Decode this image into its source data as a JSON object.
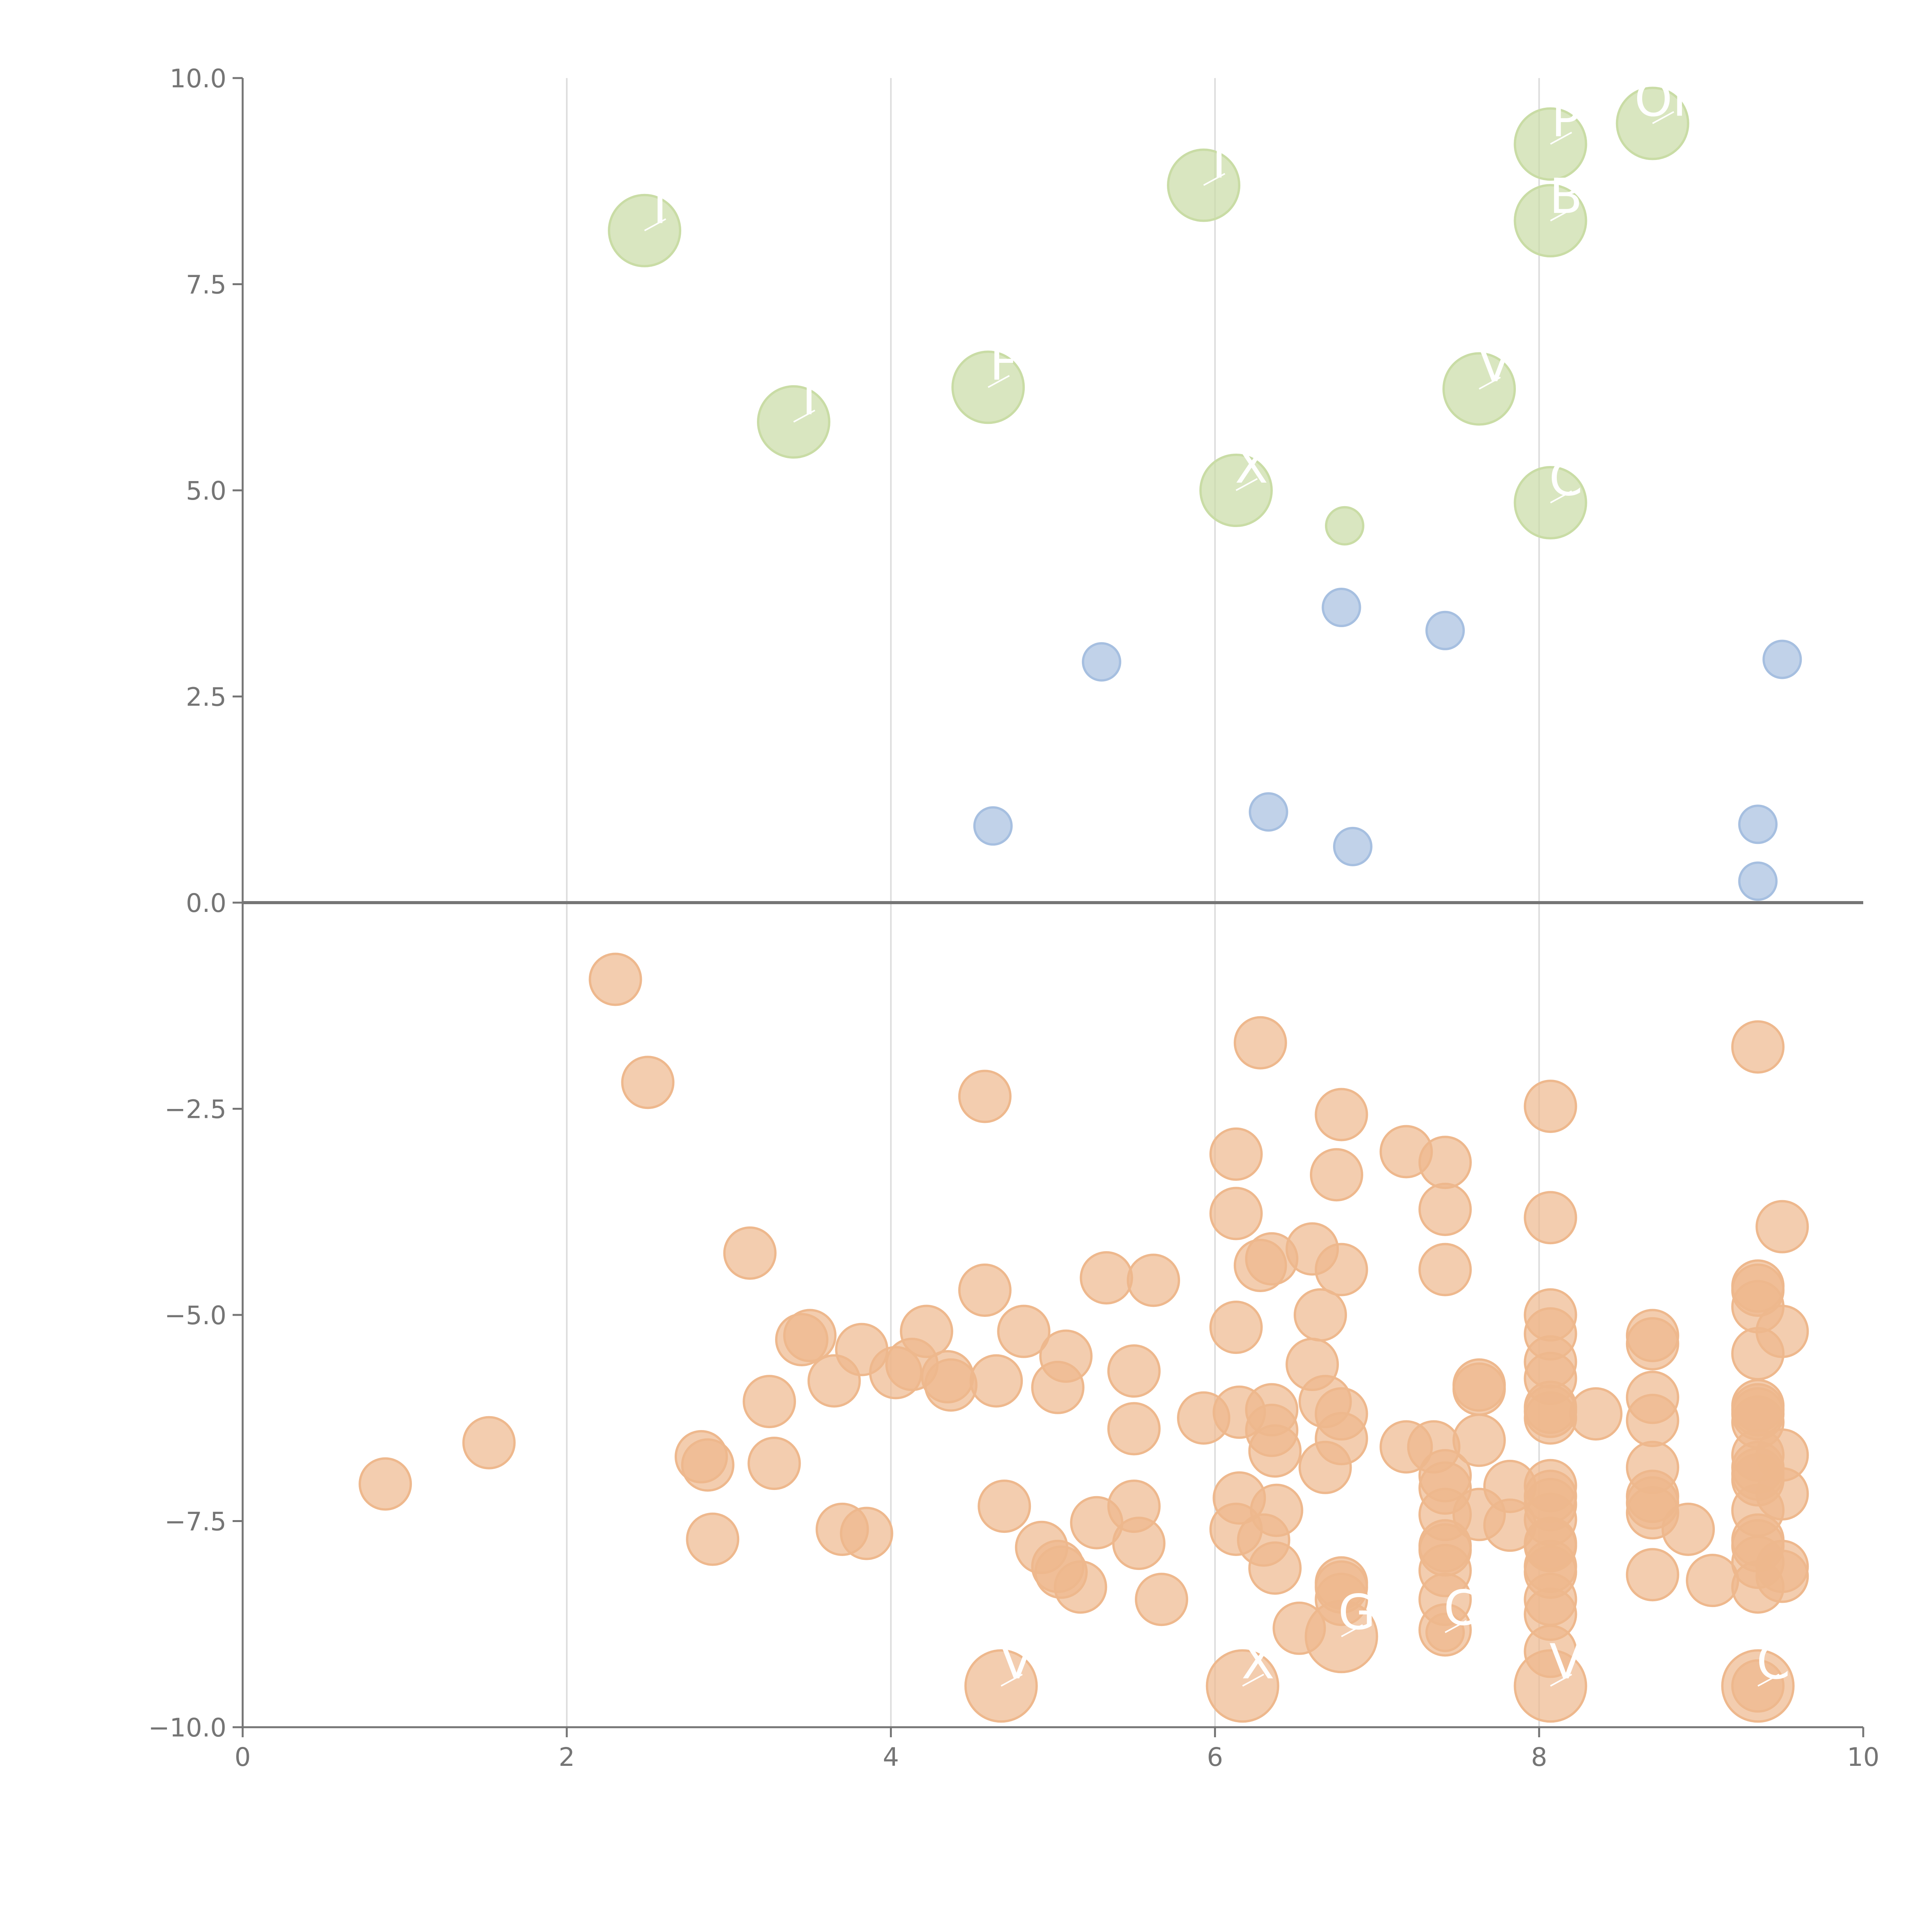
{
  "chart_data": {
    "type": "scatter",
    "title": "",
    "xlabel": "",
    "ylabel": "",
    "xlim": [
      0,
      10
    ],
    "ylim": [
      -10,
      10
    ],
    "grid": "vertical",
    "x_ticks": [
      0,
      2,
      4,
      6,
      8,
      10
    ],
    "y_ticks": [
      -10,
      -7.5,
      -5,
      -2.5,
      0,
      2.5,
      5,
      7.5,
      10
    ],
    "x_tick_labels": [
      "0",
      "2",
      "4",
      "6",
      "8",
      "10"
    ],
    "y_tick_labels": [
      "−10.0",
      "−7.5",
      "−5.0",
      "−2.5",
      "0.0",
      "2.5",
      "5.0",
      "7.5",
      "10.0"
    ],
    "zero_line": 0,
    "series": [
      {
        "name": "green",
        "color": "#c9dca5",
        "points": [
          {
            "x": 2.48,
            "y": 8.15,
            "size": "large",
            "label": "T"
          },
          {
            "x": 3.4,
            "y": 5.83,
            "size": "large",
            "label": "I"
          },
          {
            "x": 4.6,
            "y": 6.25,
            "size": "large",
            "label": "F"
          },
          {
            "x": 5.93,
            "y": 8.7,
            "size": "large",
            "label": "I"
          },
          {
            "x": 6.13,
            "y": 5.0,
            "size": "large",
            "label": "X"
          },
          {
            "x": 6.8,
            "y": 4.57,
            "size": "small"
          },
          {
            "x": 7.63,
            "y": 6.23,
            "size": "large",
            "label": "V"
          },
          {
            "x": 8.07,
            "y": 9.2,
            "size": "large",
            "label": "P"
          },
          {
            "x": 8.07,
            "y": 8.27,
            "size": "large",
            "label": "B"
          },
          {
            "x": 8.07,
            "y": 4.85,
            "size": "large",
            "label": "C"
          },
          {
            "x": 8.7,
            "y": 9.45,
            "size": "large",
            "label": "OP"
          }
        ]
      },
      {
        "name": "blue",
        "color": "#a6bfe0",
        "points": [
          {
            "x": 4.63,
            "y": 0.93,
            "size": "small"
          },
          {
            "x": 5.3,
            "y": 2.92,
            "size": "small"
          },
          {
            "x": 6.33,
            "y": 1.1,
            "size": "small"
          },
          {
            "x": 6.78,
            "y": 3.58,
            "size": "small"
          },
          {
            "x": 6.85,
            "y": 0.68,
            "size": "small"
          },
          {
            "x": 7.42,
            "y": 3.3,
            "size": "small"
          },
          {
            "x": 9.35,
            "y": 0.95,
            "size": "small"
          },
          {
            "x": 9.35,
            "y": 0.26,
            "size": "small"
          },
          {
            "x": 9.5,
            "y": 2.95,
            "size": "small"
          }
        ]
      },
      {
        "name": "orange",
        "color": "#eeb88d",
        "points": [
          {
            "x": 0.88,
            "y": -7.05
          },
          {
            "x": 1.52,
            "y": -6.55
          },
          {
            "x": 2.3,
            "y": -0.93
          },
          {
            "x": 2.5,
            "y": -2.18
          },
          {
            "x": 2.83,
            "y": -6.72
          },
          {
            "x": 2.87,
            "y": -6.82
          },
          {
            "x": 2.9,
            "y": -7.72
          },
          {
            "x": 3.13,
            "y": -4.25
          },
          {
            "x": 3.25,
            "y": -6.05
          },
          {
            "x": 3.28,
            "y": -6.8
          },
          {
            "x": 3.45,
            "y": -5.3
          },
          {
            "x": 3.5,
            "y": -5.25
          },
          {
            "x": 3.65,
            "y": -5.8
          },
          {
            "x": 3.7,
            "y": -7.6
          },
          {
            "x": 3.82,
            "y": -5.42
          },
          {
            "x": 3.85,
            "y": -7.65
          },
          {
            "x": 4.03,
            "y": -5.7
          },
          {
            "x": 4.13,
            "y": -5.6
          },
          {
            "x": 4.22,
            "y": -5.2
          },
          {
            "x": 4.35,
            "y": -5.75
          },
          {
            "x": 4.37,
            "y": -5.85
          },
          {
            "x": 4.58,
            "y": -2.35
          },
          {
            "x": 4.58,
            "y": -4.7
          },
          {
            "x": 4.65,
            "y": -5.8
          },
          {
            "x": 4.7,
            "y": -7.32
          },
          {
            "x": 4.82,
            "y": -5.2
          },
          {
            "x": 4.93,
            "y": -7.82
          },
          {
            "x": 5.03,
            "y": -5.88
          },
          {
            "x": 5.03,
            "y": -8.05
          },
          {
            "x": 5.05,
            "y": -8.12
          },
          {
            "x": 5.08,
            "y": -5.5
          },
          {
            "x": 5.17,
            "y": -8.3
          },
          {
            "x": 5.27,
            "y": -7.52
          },
          {
            "x": 5.33,
            "y": -4.55
          },
          {
            "x": 5.5,
            "y": -5.68
          },
          {
            "x": 5.5,
            "y": -6.38
          },
          {
            "x": 5.5,
            "y": -7.32
          },
          {
            "x": 5.53,
            "y": -7.77
          },
          {
            "x": 5.62,
            "y": -4.58
          },
          {
            "x": 5.67,
            "y": -8.45
          },
          {
            "x": 5.93,
            "y": -6.25
          },
          {
            "x": 6.13,
            "y": -3.05
          },
          {
            "x": 6.13,
            "y": -3.77
          },
          {
            "x": 6.13,
            "y": -5.15
          },
          {
            "x": 6.15,
            "y": -6.18
          },
          {
            "x": 6.15,
            "y": -7.22
          },
          {
            "x": 6.13,
            "y": -7.6
          },
          {
            "x": 6.28,
            "y": -1.7
          },
          {
            "x": 6.28,
            "y": -4.4
          },
          {
            "x": 6.3,
            "y": -7.73
          },
          {
            "x": 6.35,
            "y": -4.32
          },
          {
            "x": 6.35,
            "y": -6.15
          },
          {
            "x": 6.35,
            "y": -6.4
          },
          {
            "x": 6.37,
            "y": -6.65
          },
          {
            "x": 6.37,
            "y": -8.07
          },
          {
            "x": 6.38,
            "y": -7.37
          },
          {
            "x": 6.52,
            "y": -8.8
          },
          {
            "x": 6.6,
            "y": -4.2
          },
          {
            "x": 6.6,
            "y": -5.6
          },
          {
            "x": 6.65,
            "y": -5.0
          },
          {
            "x": 6.68,
            "y": -6.05
          },
          {
            "x": 6.68,
            "y": -6.85
          },
          {
            "x": 6.75,
            "y": -3.3
          },
          {
            "x": 6.78,
            "y": -2.57
          },
          {
            "x": 6.78,
            "y": -4.45
          },
          {
            "x": 6.78,
            "y": -6.2
          },
          {
            "x": 6.78,
            "y": -6.5
          },
          {
            "x": 6.78,
            "y": -8.25
          },
          {
            "x": 6.78,
            "y": -8.3
          },
          {
            "x": 6.78,
            "y": -8.45
          },
          {
            "x": 7.18,
            "y": -3.02
          },
          {
            "x": 7.18,
            "y": -6.6
          },
          {
            "x": 7.35,
            "y": -6.6
          },
          {
            "x": 7.42,
            "y": -3.15
          },
          {
            "x": 7.42,
            "y": -3.72
          },
          {
            "x": 7.42,
            "y": -4.45
          },
          {
            "x": 7.42,
            "y": -6.95
          },
          {
            "x": 7.42,
            "y": -7.1
          },
          {
            "x": 7.42,
            "y": -7.42
          },
          {
            "x": 7.42,
            "y": -7.8
          },
          {
            "x": 7.42,
            "y": -7.85
          },
          {
            "x": 7.42,
            "y": -8.1
          },
          {
            "x": 7.42,
            "y": -8.45
          },
          {
            "x": 7.42,
            "y": -8.82
          },
          {
            "x": 7.63,
            "y": -5.85
          },
          {
            "x": 7.63,
            "y": -5.9
          },
          {
            "x": 7.63,
            "y": -6.52
          },
          {
            "x": 7.63,
            "y": -7.42
          },
          {
            "x": 7.82,
            "y": -7.08
          },
          {
            "x": 7.82,
            "y": -7.55
          },
          {
            "x": 8.07,
            "y": -2.47
          },
          {
            "x": 8.07,
            "y": -3.82
          },
          {
            "x": 8.07,
            "y": -5.0
          },
          {
            "x": 8.07,
            "y": -5.23
          },
          {
            "x": 8.07,
            "y": -5.57
          },
          {
            "x": 8.07,
            "y": -5.77
          },
          {
            "x": 8.07,
            "y": -6.12
          },
          {
            "x": 8.07,
            "y": -6.17
          },
          {
            "x": 8.07,
            "y": -6.25
          },
          {
            "x": 8.07,
            "y": -7.07
          },
          {
            "x": 8.07,
            "y": -7.2
          },
          {
            "x": 8.07,
            "y": -7.3
          },
          {
            "x": 8.07,
            "y": -7.48
          },
          {
            "x": 8.07,
            "y": -7.77
          },
          {
            "x": 8.07,
            "y": -7.8
          },
          {
            "x": 8.07,
            "y": -8.05
          },
          {
            "x": 8.07,
            "y": -8.12
          },
          {
            "x": 8.07,
            "y": -8.45
          },
          {
            "x": 8.07,
            "y": -8.63
          },
          {
            "x": 8.07,
            "y": -9.08
          },
          {
            "x": 8.35,
            "y": -6.2
          },
          {
            "x": 8.7,
            "y": -5.25
          },
          {
            "x": 8.7,
            "y": -5.35
          },
          {
            "x": 8.7,
            "y": -6.0
          },
          {
            "x": 8.7,
            "y": -6.28
          },
          {
            "x": 8.7,
            "y": -6.85
          },
          {
            "x": 8.7,
            "y": -7.2
          },
          {
            "x": 8.7,
            "y": -7.28
          },
          {
            "x": 8.7,
            "y": -7.4
          },
          {
            "x": 8.7,
            "y": -8.15
          },
          {
            "x": 8.92,
            "y": -7.6
          },
          {
            "x": 9.07,
            "y": -8.22
          },
          {
            "x": 9.35,
            "y": -1.75
          },
          {
            "x": 9.35,
            "y": -4.65
          },
          {
            "x": 9.35,
            "y": -4.7
          },
          {
            "x": 9.35,
            "y": -4.9
          },
          {
            "x": 9.35,
            "y": -5.47
          },
          {
            "x": 9.35,
            "y": -6.1
          },
          {
            "x": 9.35,
            "y": -6.15
          },
          {
            "x": 9.35,
            "y": -6.2
          },
          {
            "x": 9.35,
            "y": -6.3
          },
          {
            "x": 9.35,
            "y": -6.7
          },
          {
            "x": 9.35,
            "y": -6.85
          },
          {
            "x": 9.35,
            "y": -6.93
          },
          {
            "x": 9.35,
            "y": -7.0
          },
          {
            "x": 9.35,
            "y": -7.37
          },
          {
            "x": 9.35,
            "y": -7.73
          },
          {
            "x": 9.35,
            "y": -7.8
          },
          {
            "x": 9.35,
            "y": -8.0
          },
          {
            "x": 9.35,
            "y": -8.3
          },
          {
            "x": 9.35,
            "y": -9.5
          },
          {
            "x": 9.5,
            "y": -3.93
          },
          {
            "x": 9.5,
            "y": -5.2
          },
          {
            "x": 9.5,
            "y": -6.7
          },
          {
            "x": 9.5,
            "y": -7.17
          },
          {
            "x": 9.5,
            "y": -8.05
          },
          {
            "x": 9.5,
            "y": -8.17
          },
          {
            "x": 4.68,
            "y": -9.5,
            "size": "large",
            "label": "V"
          },
          {
            "x": 6.17,
            "y": -9.5,
            "size": "large",
            "label": "X"
          },
          {
            "x": 6.78,
            "y": -8.9,
            "size": "large",
            "label": "G"
          },
          {
            "x": 8.07,
            "y": -9.5,
            "size": "large",
            "label": "V"
          },
          {
            "x": 9.35,
            "y": -9.5,
            "size": "large",
            "label": "C"
          },
          {
            "x": 7.42,
            "y": -8.85,
            "size": "small",
            "label": "C"
          }
        ]
      }
    ]
  }
}
